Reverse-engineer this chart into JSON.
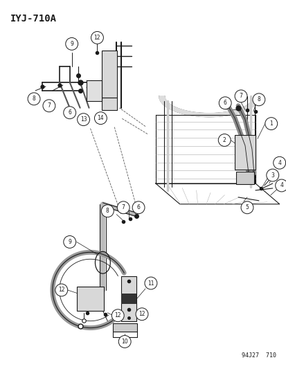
{
  "title": "IYJ-710A",
  "footer": "94J27  710",
  "bg_color": "#ffffff",
  "line_color": "#1a1a1a",
  "fig_width": 4.14,
  "fig_height": 5.33,
  "dpi": 100
}
